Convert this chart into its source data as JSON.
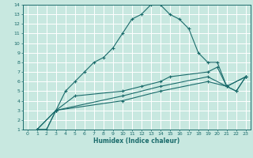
{
  "title": "",
  "xlabel": "Humidex (Indice chaleur)",
  "xlim": [
    -0.5,
    23.5
  ],
  "ylim": [
    1,
    14
  ],
  "xticks": [
    0,
    1,
    2,
    3,
    4,
    5,
    6,
    7,
    8,
    9,
    10,
    11,
    12,
    13,
    14,
    15,
    16,
    17,
    18,
    19,
    20,
    21,
    22,
    23
  ],
  "yticks": [
    1,
    2,
    3,
    4,
    5,
    6,
    7,
    8,
    9,
    10,
    11,
    12,
    13,
    14
  ],
  "bg_color": "#c8e8e0",
  "line_color": "#1a6b6b",
  "grid_color": "#ffffff",
  "series": [
    {
      "x": [
        1,
        2,
        3,
        4,
        5,
        6,
        7,
        8,
        9,
        10,
        11,
        12,
        13,
        14,
        15,
        16,
        17,
        18,
        19,
        20,
        21,
        22,
        23
      ],
      "y": [
        1,
        1,
        3,
        5,
        6,
        7,
        8,
        8.5,
        9.5,
        11,
        12.5,
        13,
        14,
        14,
        13,
        12.5,
        11.5,
        9,
        8,
        8,
        5.5,
        5,
        6.5
      ]
    },
    {
      "x": [
        1,
        2,
        3,
        5,
        10,
        12,
        14,
        15,
        19,
        20,
        21,
        22,
        23
      ],
      "y": [
        1,
        1,
        3,
        4.5,
        5,
        5.5,
        6,
        6.5,
        7,
        7.5,
        5.5,
        5,
        6.5
      ]
    },
    {
      "x": [
        1,
        3,
        10,
        14,
        19,
        21,
        23
      ],
      "y": [
        1,
        3,
        4.5,
        5.5,
        6.5,
        5.5,
        6.5
      ]
    },
    {
      "x": [
        1,
        3,
        10,
        14,
        19,
        21,
        23
      ],
      "y": [
        1,
        3,
        4,
        5,
        6,
        5.5,
        6.5
      ]
    }
  ]
}
